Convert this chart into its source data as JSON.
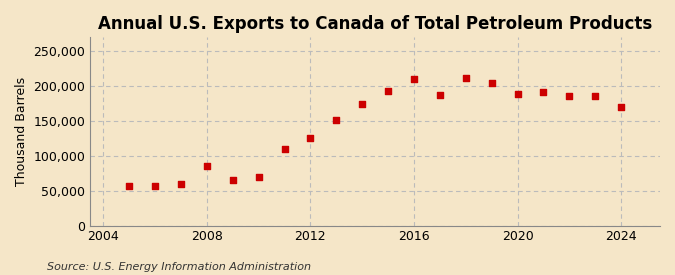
{
  "title": "Annual U.S. Exports to Canada of Total Petroleum Products",
  "ylabel": "Thousand Barrels",
  "source": "Source: U.S. Energy Information Administration",
  "background_color": "#f5e6c8",
  "marker_color": "#cc0000",
  "years": [
    2005,
    2006,
    2007,
    2008,
    2009,
    2010,
    2011,
    2012,
    2013,
    2014,
    2015,
    2016,
    2017,
    2018,
    2019,
    2020,
    2021,
    2022,
    2023,
    2024
  ],
  "values": [
    57000,
    57000,
    60000,
    85000,
    65000,
    70000,
    110000,
    126000,
    152000,
    175000,
    193000,
    210000,
    188000,
    212000,
    205000,
    189000,
    192000,
    186000,
    186000,
    170000
  ],
  "xlim": [
    2003.5,
    2025.5
  ],
  "ylim": [
    0,
    270000
  ],
  "yticks": [
    0,
    50000,
    100000,
    150000,
    200000,
    250000
  ],
  "ytick_labels": [
    "0",
    "50,000",
    "100,000",
    "150,000",
    "200,000",
    "250,000"
  ],
  "xticks": [
    2004,
    2008,
    2012,
    2016,
    2020,
    2024
  ],
  "grid_color": "#bbbbbb",
  "title_fontsize": 12,
  "label_fontsize": 9,
  "source_fontsize": 8
}
